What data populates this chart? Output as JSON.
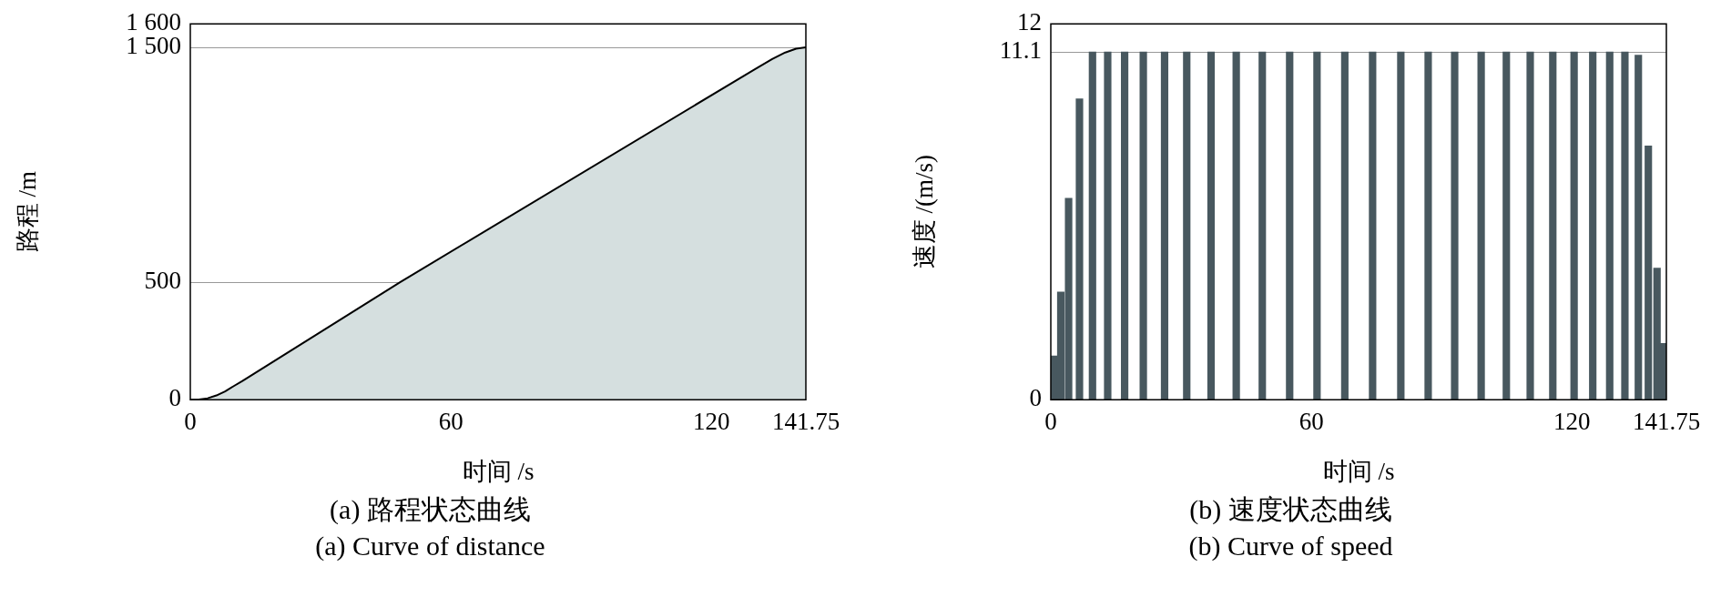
{
  "chart_data": [
    {
      "type": "area",
      "title": "(a) 路程状态曲线",
      "subtitle": "(a) Curve of distance",
      "xlabel": "时间 /s",
      "ylabel": "路程 /m",
      "xlim": [
        0,
        141.75
      ],
      "xticks": [
        0,
        60,
        120,
        141.75
      ],
      "ylim": [
        0,
        1600
      ],
      "yticks": [
        0,
        500,
        {
          "value": 1500,
          "label": "1 500"
        },
        {
          "value": 1600,
          "label": "1 600"
        }
      ],
      "grid": "y",
      "x": [
        0,
        2,
        4,
        6,
        8,
        10,
        12,
        48.3,
        130,
        134,
        137,
        139.5,
        141.75
      ],
      "series": [
        {
          "color": "#d5dfdf",
          "values": [
            0,
            1,
            6,
            18,
            35,
            58,
            80,
            500,
            1407,
            1450,
            1478,
            1494,
            1500
          ]
        }
      ]
    },
    {
      "type": "bar",
      "title": "(b) 速度状态曲线",
      "subtitle": "(b) Curve of speed",
      "xlabel": "时间 /s",
      "ylabel": "速度 /(m/s)",
      "xlim": [
        0,
        141.75
      ],
      "xticks": [
        0,
        60,
        120,
        141.75
      ],
      "ylim": [
        0,
        12
      ],
      "yticks": [
        0,
        11.1,
        12
      ],
      "grid": "y",
      "x": [
        0.76,
        2.3,
        4.1,
        6.6,
        9.6,
        13.1,
        17.0,
        21.3,
        26.2,
        31.3,
        36.9,
        42.7,
        48.7,
        55.0,
        61.3,
        67.7,
        74.1,
        80.6,
        86.9,
        93.0,
        99.1,
        104.9,
        110.4,
        115.6,
        120.5,
        124.8,
        128.7,
        132.2,
        135.3,
        137.6,
        139.6,
        140.9
      ],
      "series": [
        {
          "color": "#48585f",
          "values": [
            1.4,
            3.44,
            6.43,
            9.61,
            11.1,
            11.1,
            11.1,
            11.1,
            11.1,
            11.1,
            11.1,
            11.1,
            11.1,
            11.1,
            11.1,
            11.1,
            11.1,
            11.1,
            11.1,
            11.1,
            11.1,
            11.1,
            11.1,
            11.1,
            11.1,
            11.1,
            11.1,
            11.1,
            11.0,
            8.1,
            4.2,
            1.8
          ]
        }
      ]
    }
  ]
}
